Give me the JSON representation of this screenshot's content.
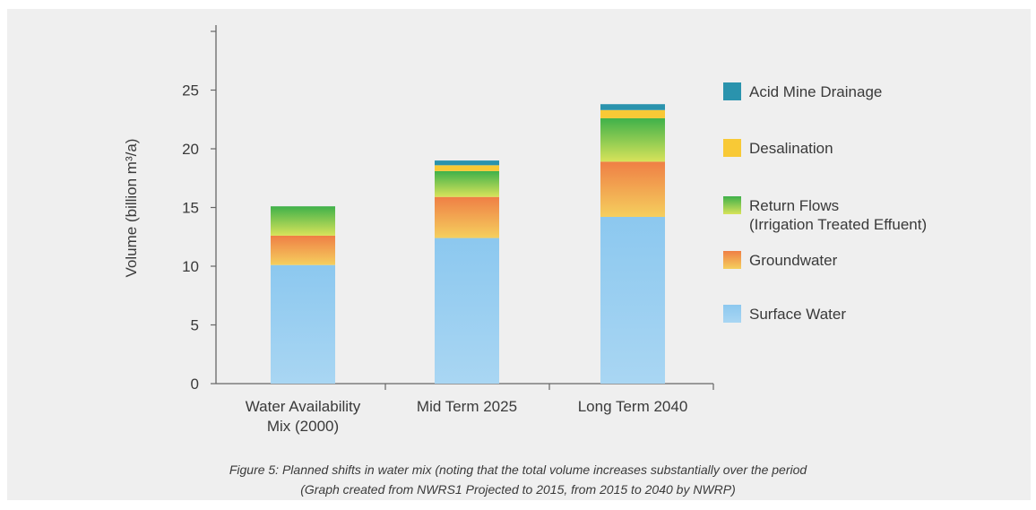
{
  "chart_data": {
    "type": "bar",
    "stacked": true,
    "categories": [
      "Water Availability Mix (2000)",
      "Mid Term 2025",
      "Long Term 2040"
    ],
    "category_lines": [
      [
        "Water Availability",
        "Mix (2000)"
      ],
      [
        "Mid Term 2025"
      ],
      [
        "Long Term 2040"
      ]
    ],
    "ylabel": "Volume (billion m³/a)",
    "ylim": [
      0,
      30
    ],
    "yticks": [
      "0",
      "5",
      "10",
      "15",
      "20",
      "25"
    ],
    "legend_position": "right",
    "grid": false,
    "series": [
      {
        "name": "Surface Water",
        "values": [
          10.1,
          12.4,
          14.2
        ],
        "color": "#8cc8ef"
      },
      {
        "name": "Groundwater",
        "values": [
          2.5,
          3.5,
          4.7
        ],
        "color": "#ef7f45"
      },
      {
        "name": "Return Flows (Irrigation Treated Effuent)",
        "legend_lines": [
          "Return Flows",
          "(Irrigation Treated Effuent)"
        ],
        "values": [
          2.5,
          2.2,
          3.7
        ],
        "color": "#3fb14a"
      },
      {
        "name": "Desalination",
        "values": [
          0,
          0.5,
          0.7
        ],
        "color": "#f8c936"
      },
      {
        "name": "Acid Mine Drainage",
        "values": [
          0,
          0.4,
          0.5
        ],
        "color": "#2a93ad"
      }
    ],
    "legend_order": [
      4,
      3,
      2,
      1,
      0
    ]
  },
  "caption": {
    "line1": "Figure 5: Planned shifts in water mix (noting that the total volume increases substantially over the period",
    "line2": "(Graph created from NWRS1 Projected to 2015, from 2015 to 2040 by NWRP)"
  }
}
